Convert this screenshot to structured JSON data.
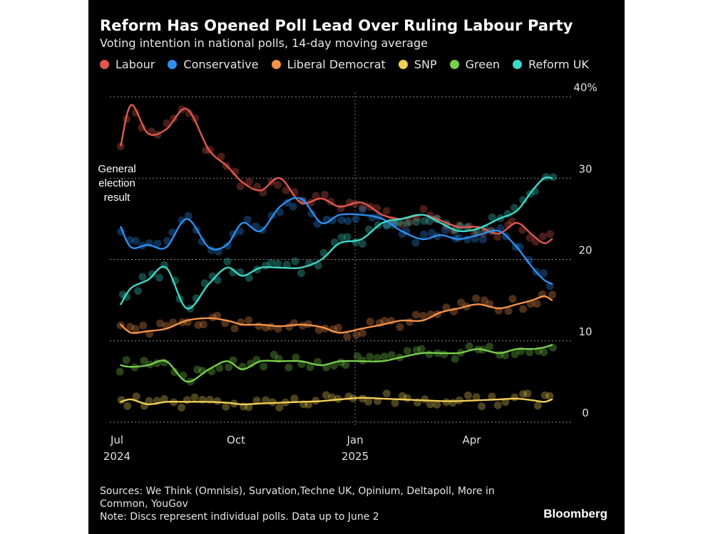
{
  "title": "Reform Has Opened Poll Lead Over Ruling Labour Party",
  "subtitle": "Voting intention in national polls, 14-day moving average",
  "legend": [
    {
      "label": "Labour",
      "color": "#e0594f"
    },
    {
      "label": "Conservative",
      "color": "#2f8fef"
    },
    {
      "label": "Liberal Democrat",
      "color": "#f5934a"
    },
    {
      "label": "SNP",
      "color": "#f1cf56"
    },
    {
      "label": "Green",
      "color": "#78cf4c"
    },
    {
      "label": "Reform UK",
      "color": "#3fd8c8"
    }
  ],
  "annotation": [
    "General",
    "election",
    "result"
  ],
  "sources": "Sources: We Think (Omnisis), Survation,Techne UK, Opinium, Deltapoll, More in Common, YouGov",
  "note": "Note: Discs represent individual polls. Data up to June 2",
  "brand": "Bloomberg",
  "chart_data": {
    "type": "line",
    "title": "Reform Has Opened Poll Lead Over Ruling Labour Party",
    "subtitle": "Voting intention in national polls, 14-day moving average",
    "xlabel": "",
    "ylabel": "%",
    "ylim": [
      0,
      40
    ],
    "yticks": [
      0,
      10,
      20,
      30,
      40
    ],
    "ytick_labels": [
      "0",
      "10",
      "20",
      "30",
      "40%"
    ],
    "x_range": [
      "2024-07-04",
      "2025-06-02"
    ],
    "xticks": [
      {
        "date": "2024-07-01",
        "label": [
          "Jul",
          "2024"
        ]
      },
      {
        "date": "2024-10-01",
        "label": [
          "Oct"
        ]
      },
      {
        "date": "2025-01-01",
        "label": [
          "Jan",
          "2025"
        ]
      },
      {
        "date": "2025-04-01",
        "label": [
          "Apr"
        ]
      }
    ],
    "grid": true,
    "legend_position": "top",
    "markers": "Discs represent individual polls",
    "series": [
      {
        "name": "Labour",
        "color": "#e0594f",
        "x": [
          "2024-07-04",
          "2024-07-12",
          "2024-07-25",
          "2024-08-08",
          "2024-08-24",
          "2024-09-10",
          "2024-09-24",
          "2024-10-06",
          "2024-10-20",
          "2024-11-04",
          "2024-11-20",
          "2024-12-06",
          "2024-12-20",
          "2025-01-06",
          "2025-01-22",
          "2025-02-06",
          "2025-02-22",
          "2025-03-08",
          "2025-03-22",
          "2025-04-06",
          "2025-04-22",
          "2025-05-06",
          "2025-05-18",
          "2025-05-27",
          "2025-06-02"
        ],
        "values": [
          34,
          39,
          35.5,
          36,
          38.5,
          33.5,
          31.5,
          29.5,
          28.5,
          30,
          27,
          27.5,
          26.5,
          27,
          25.5,
          25,
          25.5,
          24.8,
          24,
          24,
          23.2,
          24.5,
          23,
          22,
          22.5
        ]
      },
      {
        "name": "Conservative",
        "color": "#2f8fef",
        "x": [
          "2024-07-04",
          "2024-07-12",
          "2024-07-25",
          "2024-08-08",
          "2024-08-24",
          "2024-09-10",
          "2024-09-24",
          "2024-10-06",
          "2024-10-20",
          "2024-11-04",
          "2024-11-20",
          "2024-12-06",
          "2024-12-20",
          "2025-01-06",
          "2025-01-22",
          "2025-02-06",
          "2025-02-22",
          "2025-03-08",
          "2025-03-22",
          "2025-04-06",
          "2025-04-22",
          "2025-05-06",
          "2025-05-18",
          "2025-05-27",
          "2025-06-02"
        ],
        "values": [
          24,
          21.5,
          21.8,
          21.5,
          25,
          21.5,
          21.8,
          24.5,
          23.5,
          26.5,
          27.5,
          24.5,
          25.5,
          25.5,
          25,
          23.5,
          22.5,
          23,
          22.5,
          23,
          23.5,
          21.5,
          19,
          17.5,
          17
        ]
      },
      {
        "name": "Liberal Democrat",
        "color": "#f5934a",
        "x": [
          "2024-07-04",
          "2024-07-12",
          "2024-07-25",
          "2024-08-08",
          "2024-08-24",
          "2024-09-10",
          "2024-09-24",
          "2024-10-06",
          "2024-10-20",
          "2024-11-04",
          "2024-11-20",
          "2024-12-06",
          "2024-12-20",
          "2025-01-06",
          "2025-01-22",
          "2025-02-06",
          "2025-02-22",
          "2025-03-08",
          "2025-03-22",
          "2025-04-06",
          "2025-04-22",
          "2025-05-06",
          "2025-05-18",
          "2025-05-27",
          "2025-06-02"
        ],
        "values": [
          12,
          11,
          11.2,
          11.5,
          12.5,
          12.8,
          12.5,
          12,
          12,
          11.8,
          12,
          11.7,
          11,
          11.5,
          12,
          12.5,
          12.5,
          13.5,
          14,
          14.5,
          14,
          14.5,
          15,
          15.5,
          15
        ]
      },
      {
        "name": "SNP",
        "color": "#f1cf56",
        "x": [
          "2024-07-04",
          "2024-07-12",
          "2024-07-25",
          "2024-08-08",
          "2024-08-24",
          "2024-09-10",
          "2024-09-24",
          "2024-10-06",
          "2024-10-20",
          "2024-11-04",
          "2024-11-20",
          "2024-12-06",
          "2024-12-20",
          "2025-01-06",
          "2025-01-22",
          "2025-02-06",
          "2025-02-22",
          "2025-03-08",
          "2025-03-22",
          "2025-04-06",
          "2025-04-22",
          "2025-05-06",
          "2025-05-18",
          "2025-05-27",
          "2025-06-02"
        ],
        "values": [
          2.5,
          2.8,
          2.2,
          2.5,
          2.5,
          2.5,
          2.4,
          2.2,
          2.3,
          2.4,
          2.5,
          2.6,
          2.8,
          3,
          2.9,
          2.8,
          2.7,
          2.6,
          2.6,
          2.7,
          2.8,
          2.9,
          2.7,
          2.5,
          2.8
        ]
      },
      {
        "name": "Green",
        "color": "#78cf4c",
        "x": [
          "2024-07-04",
          "2024-07-12",
          "2024-07-25",
          "2024-08-08",
          "2024-08-24",
          "2024-09-10",
          "2024-09-24",
          "2024-10-06",
          "2024-10-20",
          "2024-11-04",
          "2024-11-20",
          "2024-12-06",
          "2024-12-20",
          "2025-01-06",
          "2025-01-22",
          "2025-02-06",
          "2025-02-22",
          "2025-03-08",
          "2025-03-22",
          "2025-04-06",
          "2025-04-22",
          "2025-05-06",
          "2025-05-18",
          "2025-05-27",
          "2025-06-02"
        ],
        "values": [
          7,
          6.8,
          7,
          7.5,
          5,
          6.5,
          7.5,
          6.5,
          7.5,
          7.5,
          7.5,
          7,
          7.5,
          7.5,
          7.5,
          8,
          8.5,
          8.5,
          8.5,
          9,
          8.5,
          9,
          9,
          9.2,
          9.5
        ]
      },
      {
        "name": "Reform UK",
        "color": "#3fd8c8",
        "x": [
          "2024-07-04",
          "2024-07-12",
          "2024-07-25",
          "2024-08-08",
          "2024-08-24",
          "2024-09-10",
          "2024-09-24",
          "2024-10-06",
          "2024-10-20",
          "2024-11-04",
          "2024-11-20",
          "2024-12-06",
          "2024-12-20",
          "2025-01-06",
          "2025-01-22",
          "2025-02-06",
          "2025-02-22",
          "2025-03-08",
          "2025-03-22",
          "2025-04-06",
          "2025-04-22",
          "2025-05-06",
          "2025-05-18",
          "2025-05-27",
          "2025-06-02"
        ],
        "values": [
          14.5,
          16.5,
          17.5,
          19,
          14,
          17,
          19,
          18,
          19,
          19,
          19,
          20,
          22,
          22.5,
          24.5,
          25,
          25.5,
          24.5,
          23.5,
          23.8,
          25,
          26,
          28.5,
          30,
          30
        ]
      }
    ],
    "annotations": [
      {
        "text": "General election result",
        "x": "2024-07-04"
      }
    ]
  }
}
